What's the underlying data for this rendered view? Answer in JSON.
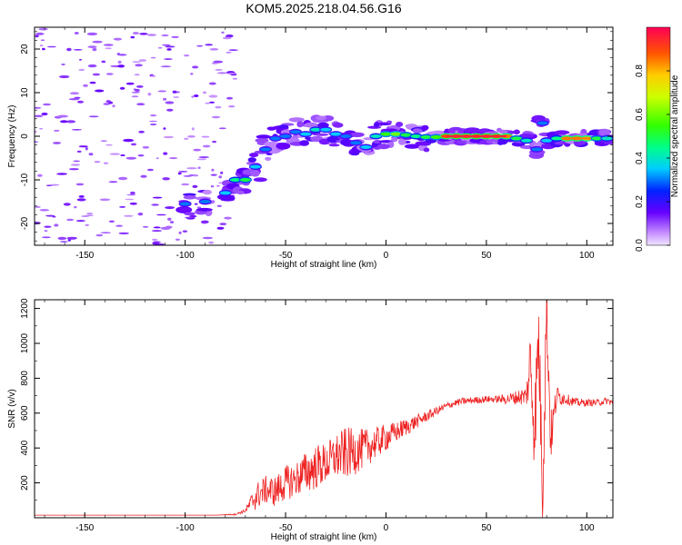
{
  "title": "KOM5.2025.218.04.56.G16",
  "chart_data": [
    {
      "type": "heatmap",
      "xlabel": "Height of straight line (km)",
      "ylabel": "Frequency (Hz)",
      "xlim": [
        -175,
        113
      ],
      "ylim": [
        -25,
        25
      ],
      "x_ticks": [
        -150,
        -100,
        -50,
        0,
        50,
        100
      ],
      "x_tick_labels": [
        "-150",
        "-100",
        "-50",
        "0",
        "50",
        "100"
      ],
      "y_ticks": [
        -20,
        -10,
        0,
        10,
        20
      ],
      "y_tick_labels": [
        "-20",
        "-10",
        "0",
        "10",
        "20"
      ],
      "colorbar": {
        "label": "Normalized spectral amplitude",
        "range": [
          0,
          1
        ],
        "ticks": [
          0.0,
          0.2,
          0.4,
          0.6,
          0.8
        ],
        "tick_labels": [
          "0.0",
          "0.2",
          "0.4",
          "0.6",
          "0.8"
        ]
      },
      "ridge": [
        {
          "x": -100,
          "y": -15.5,
          "amp": 0.3
        },
        {
          "x": -90,
          "y": -15,
          "amp": 0.3
        },
        {
          "x": -80,
          "y": -13,
          "amp": 0.35
        },
        {
          "x": -75,
          "y": -10,
          "amp": 0.45
        },
        {
          "x": -70,
          "y": -10,
          "amp": 0.5
        },
        {
          "x": -65,
          "y": -7,
          "amp": 0.35
        },
        {
          "x": -60,
          "y": -3,
          "amp": 0.3
        },
        {
          "x": -55,
          "y": -0.5,
          "amp": 0.3
        },
        {
          "x": -50,
          "y": 0,
          "amp": 0.3
        },
        {
          "x": -45,
          "y": 1,
          "amp": 0.3
        },
        {
          "x": -40,
          "y": 0.5,
          "amp": 0.35
        },
        {
          "x": -35,
          "y": 1.5,
          "amp": 0.4
        },
        {
          "x": -30,
          "y": 1.5,
          "amp": 0.35
        },
        {
          "x": -25,
          "y": 0.5,
          "amp": 0.35
        },
        {
          "x": -20,
          "y": 0,
          "amp": 0.3
        },
        {
          "x": -15,
          "y": -1.5,
          "amp": 0.3
        },
        {
          "x": -10,
          "y": -2.5,
          "amp": 0.35
        },
        {
          "x": -5,
          "y": 0,
          "amp": 0.4
        },
        {
          "x": 0,
          "y": 0.5,
          "amp": 0.55
        },
        {
          "x": 5,
          "y": 0.5,
          "amp": 0.6
        },
        {
          "x": 10,
          "y": 0.3,
          "amp": 0.5
        },
        {
          "x": 15,
          "y": 0,
          "amp": 0.45
        },
        {
          "x": 20,
          "y": -0.2,
          "amp": 0.5
        },
        {
          "x": 25,
          "y": -0.2,
          "amp": 0.55
        },
        {
          "x": 30,
          "y": 0,
          "amp": 0.9
        },
        {
          "x": 35,
          "y": 0,
          "amp": 0.92
        },
        {
          "x": 40,
          "y": 0,
          "amp": 0.92
        },
        {
          "x": 45,
          "y": 0,
          "amp": 0.92
        },
        {
          "x": 50,
          "y": 0,
          "amp": 0.92
        },
        {
          "x": 55,
          "y": 0,
          "amp": 0.9
        },
        {
          "x": 60,
          "y": 0,
          "amp": 0.85
        },
        {
          "x": 65,
          "y": -0.5,
          "amp": 0.5
        },
        {
          "x": 70,
          "y": -1,
          "amp": 0.4
        },
        {
          "x": 75,
          "y": -3,
          "amp": 0.3
        },
        {
          "x": 78,
          "y": 3,
          "amp": 0.3
        },
        {
          "x": 80,
          "y": -1,
          "amp": 0.35
        },
        {
          "x": 85,
          "y": -0.5,
          "amp": 0.45
        },
        {
          "x": 90,
          "y": -0.5,
          "amp": 0.85
        },
        {
          "x": 95,
          "y": -0.5,
          "amp": 0.85
        },
        {
          "x": 100,
          "y": -0.5,
          "amp": 0.8
        },
        {
          "x": 105,
          "y": -0.5,
          "amp": 0.5
        },
        {
          "x": 110,
          "y": -0.5,
          "amp": 0.4
        }
      ]
    },
    {
      "type": "line",
      "xlabel": "Height of straight line (km)",
      "ylabel": "SNR (v/v)",
      "xlim": [
        -175,
        113
      ],
      "ylim": [
        0,
        1250
      ],
      "x_ticks": [
        -150,
        -100,
        -50,
        0,
        50,
        100
      ],
      "x_tick_labels": [
        "-150",
        "-100",
        "-50",
        "0",
        "50",
        "100"
      ],
      "y_ticks": [
        200,
        400,
        600,
        800,
        1000,
        1200
      ],
      "y_tick_labels": [
        "200",
        "400",
        "600",
        "800",
        "1000",
        "1200"
      ],
      "series": [
        {
          "name": "SNR",
          "color": "#ee2222",
          "x": [
            -175,
            -150,
            -125,
            -100,
            -85,
            -75,
            -70,
            -65,
            -60,
            -55,
            -50,
            -45,
            -40,
            -35,
            -30,
            -25,
            -20,
            -15,
            -10,
            -5,
            0,
            5,
            10,
            15,
            20,
            25,
            30,
            35,
            40,
            45,
            50,
            55,
            60,
            65,
            70,
            72,
            74,
            76,
            78,
            80,
            82,
            85,
            90,
            95,
            100,
            105,
            110,
            113
          ],
          "values": [
            15,
            15,
            15,
            15,
            15,
            20,
            40,
            120,
            160,
            150,
            200,
            220,
            260,
            290,
            310,
            350,
            370,
            380,
            400,
            430,
            460,
            490,
            520,
            550,
            580,
            610,
            640,
            660,
            670,
            675,
            680,
            680,
            680,
            690,
            700,
            900,
            500,
            1050,
            150,
            1240,
            450,
            700,
            680,
            660,
            660,
            660,
            670,
            660
          ],
          "noise": [
            0,
            0,
            0,
            0,
            0,
            5,
            10,
            80,
            80,
            90,
            100,
            100,
            120,
            130,
            120,
            130,
            150,
            130,
            110,
            90,
            80,
            60,
            50,
            40,
            30,
            25,
            20,
            20,
            20,
            20,
            20,
            20,
            30,
            40,
            60,
            250,
            250,
            250,
            250,
            250,
            150,
            60,
            30,
            25,
            20,
            20,
            20,
            20
          ]
        }
      ]
    }
  ]
}
